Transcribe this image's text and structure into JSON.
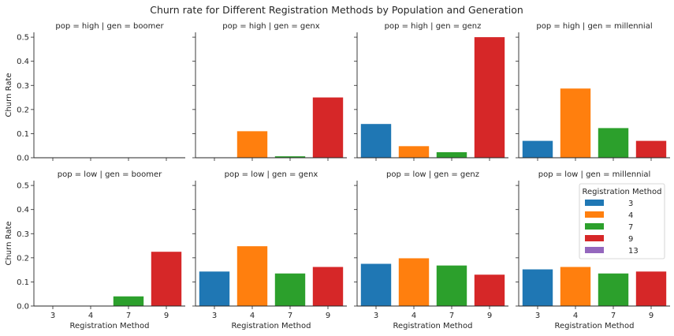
{
  "chart_data": {
    "type": "bar",
    "title": "Churn rate for Different Registration Methods by Population and Generation",
    "xlabel": "Registration Method",
    "ylabel": "Churn Rate",
    "ylim": [
      0,
      0.52
    ],
    "yticks": [
      "0.0",
      "0.1",
      "0.2",
      "0.3",
      "0.4",
      "0.5"
    ],
    "categories": [
      "3",
      "4",
      "7",
      "9"
    ],
    "colors": [
      "#1f77b4",
      "#ff7f0e",
      "#2ca02c",
      "#d62728",
      "#9467bd"
    ],
    "legend": {
      "title": "Registration Method",
      "placement": "right, inside last panel",
      "entries": [
        "3",
        "4",
        "7",
        "9",
        "13"
      ]
    },
    "grid": false,
    "panels": [
      {
        "title": "pop = high | gen = boomer",
        "values": [
          0,
          0,
          0,
          0
        ]
      },
      {
        "title": "pop = high | gen = genx",
        "values": [
          0,
          0.11,
          0.006,
          0.25
        ]
      },
      {
        "title": "pop = high | gen = genz",
        "values": [
          0.14,
          0.048,
          0.023,
          0.5
        ]
      },
      {
        "title": "pop = high | gen = millennial",
        "values": [
          0.07,
          0.287,
          0.123,
          0.07
        ]
      },
      {
        "title": "pop = low | gen = boomer",
        "values": [
          0,
          0,
          0.04,
          0.225
        ]
      },
      {
        "title": "pop = low | gen = genx",
        "values": [
          0.143,
          0.248,
          0.135,
          0.162
        ]
      },
      {
        "title": "pop = low | gen = genz",
        "values": [
          0.175,
          0.198,
          0.168,
          0.13
        ]
      },
      {
        "title": "pop = low | gen = millennial",
        "values": [
          0.152,
          0.162,
          0.135,
          0.143
        ]
      }
    ]
  }
}
